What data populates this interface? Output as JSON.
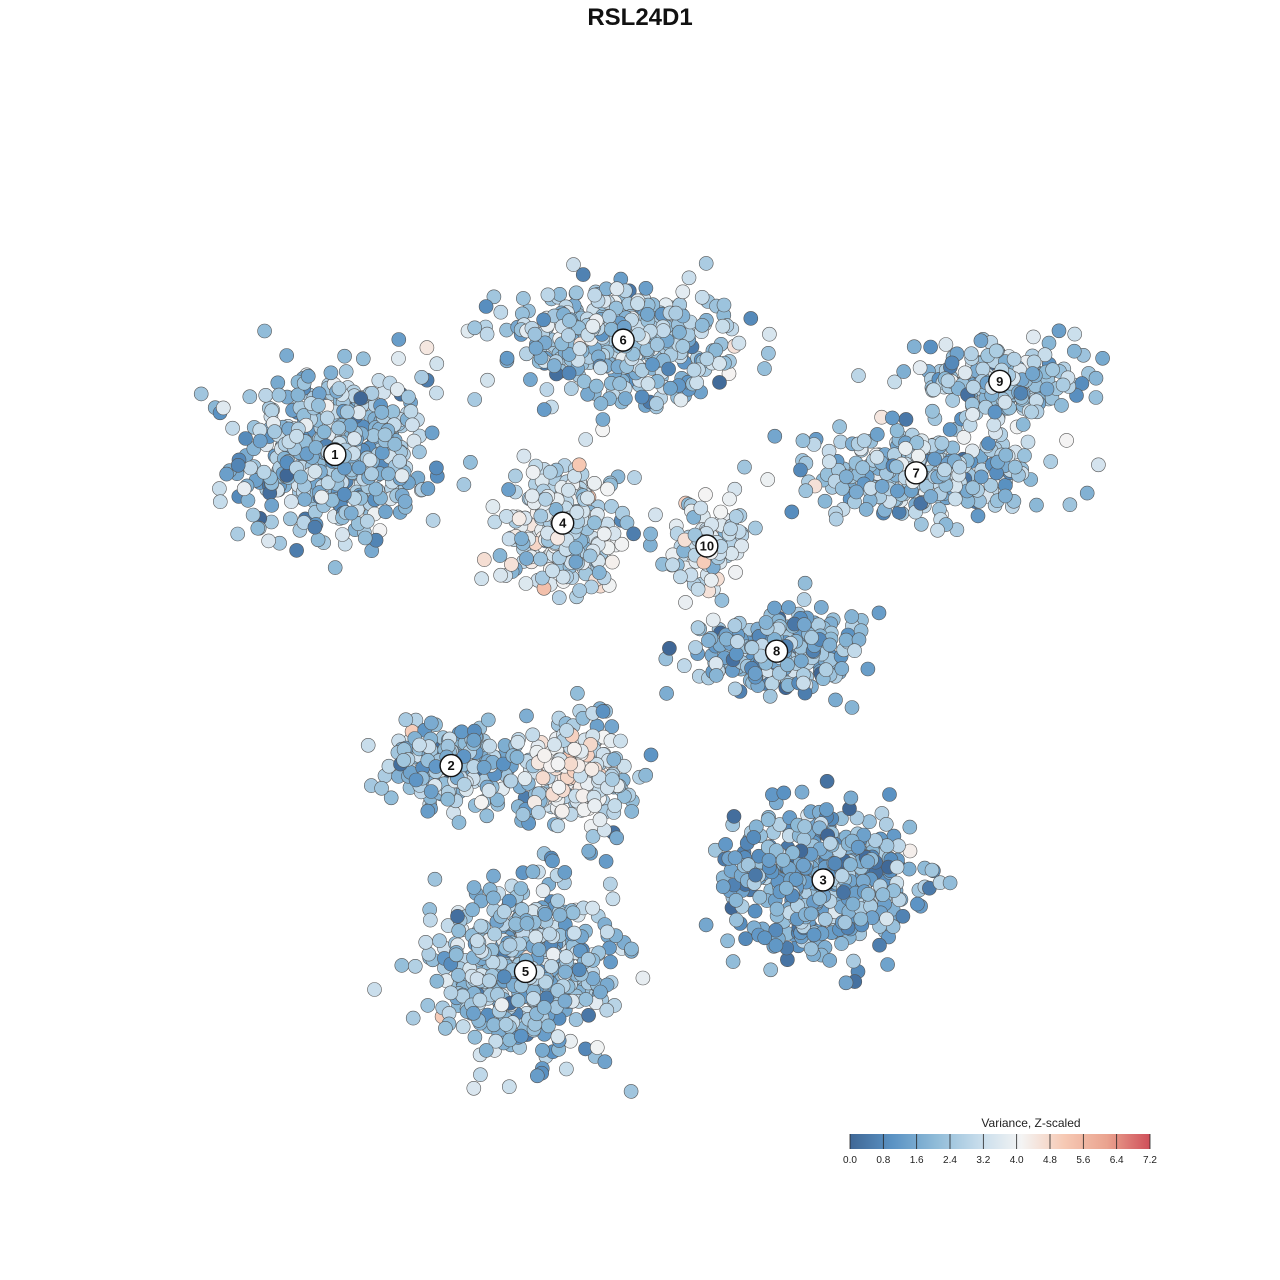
{
  "chart_data": {
    "type": "scatter",
    "title": "RSL24D1",
    "xlabel": "",
    "ylabel": "",
    "grid": false,
    "colorbar": {
      "title": "Variance, Z-scaled",
      "min": 0.0,
      "max": 7.2,
      "ticks": [
        "0.0",
        "0.8",
        "1.6",
        "2.4",
        "3.2",
        "4.0",
        "4.8",
        "5.6",
        "6.4",
        "7.2"
      ],
      "tick_values": [
        0.0,
        0.8,
        1.6,
        2.4,
        3.2,
        4.0,
        4.8,
        5.6,
        6.4,
        7.2
      ],
      "colors": [
        "#3f6796",
        "#5b93c4",
        "#8fbbd8",
        "#c6dceb",
        "#f4f4f4",
        "#f6c9b4",
        "#eaa38f",
        "#cf4f5a"
      ],
      "placement": "bottom-right"
    },
    "clusters": [
      {
        "label": "1",
        "x": 0.145,
        "y": 0.7,
        "spread": [
          0.1,
          0.09
        ],
        "n": 520,
        "mean_value": 2.2
      },
      {
        "label": "2",
        "x": 0.27,
        "y": 0.36,
        "spread": [
          0.07,
          0.045
        ],
        "n": 230,
        "mean_value": 2.3
      },
      {
        "label": "3",
        "x": 0.67,
        "y": 0.235,
        "spread": [
          0.095,
          0.075
        ],
        "n": 520,
        "mean_value": 1.7
      },
      {
        "label": "4",
        "x": 0.39,
        "y": 0.625,
        "spread": [
          0.065,
          0.07
        ],
        "n": 270,
        "mean_value": 3.1
      },
      {
        "label": "5",
        "x": 0.35,
        "y": 0.135,
        "spread": [
          0.095,
          0.085
        ],
        "n": 560,
        "mean_value": 2.2
      },
      {
        "label": "6",
        "x": 0.455,
        "y": 0.825,
        "spread": [
          0.12,
          0.055
        ],
        "n": 450,
        "mean_value": 2.3
      },
      {
        "label": "7",
        "x": 0.77,
        "y": 0.68,
        "spread": [
          0.12,
          0.05
        ],
        "n": 300,
        "mean_value": 2.4
      },
      {
        "label": "8",
        "x": 0.62,
        "y": 0.485,
        "spread": [
          0.085,
          0.045
        ],
        "n": 270,
        "mean_value": 2.0
      },
      {
        "label": "9",
        "x": 0.86,
        "y": 0.78,
        "spread": [
          0.095,
          0.04
        ],
        "n": 200,
        "mean_value": 2.4
      },
      {
        "label": "10",
        "x": 0.545,
        "y": 0.6,
        "spread": [
          0.05,
          0.05
        ],
        "n": 100,
        "mean_value": 3.2
      },
      {
        "label": "",
        "x": 0.4,
        "y": 0.35,
        "spread": [
          0.06,
          0.06
        ],
        "n": 240,
        "mean_value": 4.8
      }
    ]
  }
}
